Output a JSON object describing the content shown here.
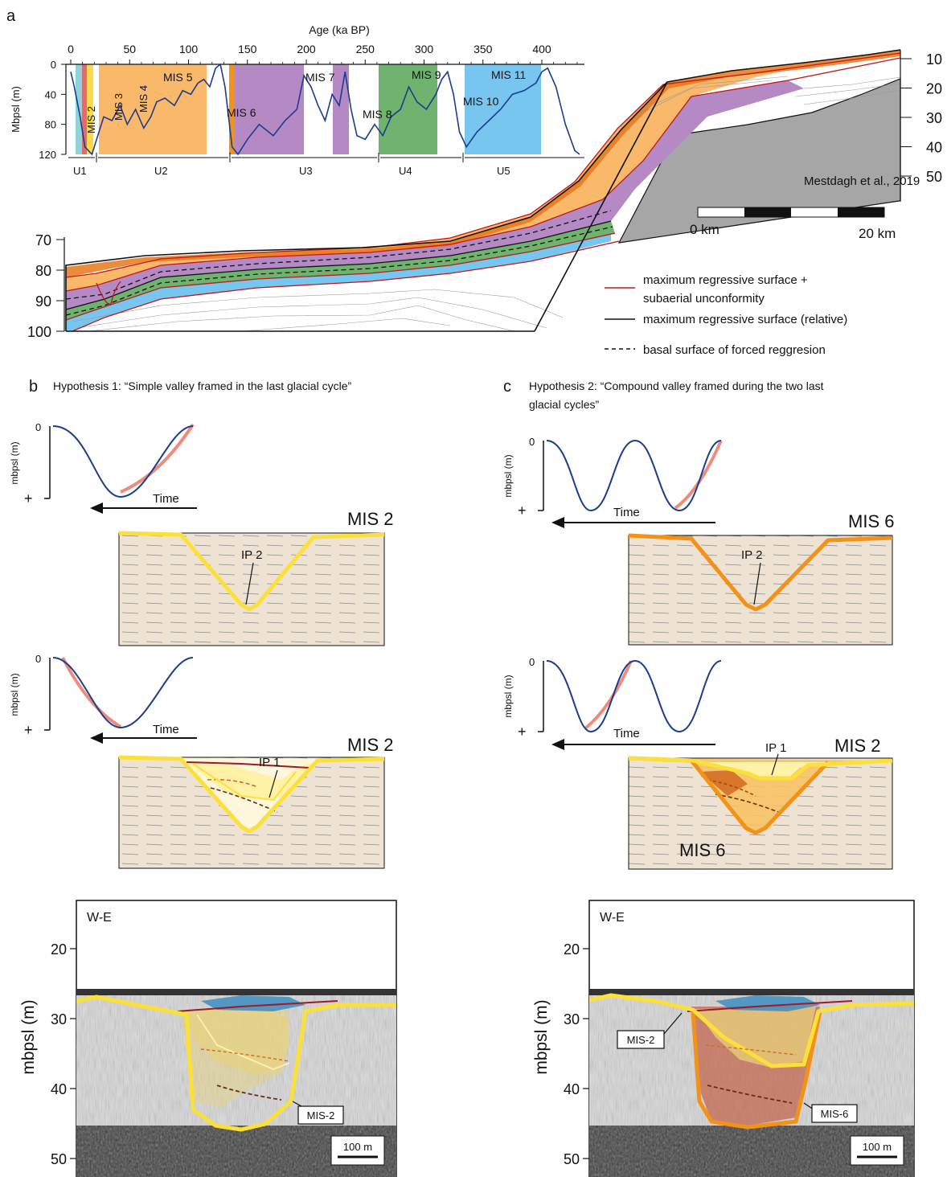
{
  "panel_a": {
    "letter": "a",
    "age_axis_title": "Age (ka BP)",
    "age_ticks": [
      "0",
      "50",
      "100",
      "150",
      "200",
      "250",
      "300",
      "350",
      "400"
    ],
    "depth_axis_title": "Mbpsl (m)",
    "depth_ticks": [
      "0",
      "40",
      "80",
      "120"
    ],
    "mis_labels": [
      "MIS 2",
      "MIS 3",
      "MIS 4",
      "MIS 5",
      "MIS 6",
      "MIS 7",
      "MIS 8",
      "MIS 9",
      "MIS 10",
      "MIS 11"
    ],
    "units": [
      "U1",
      "U2",
      "U3",
      "U4",
      "U5"
    ],
    "right_ticks": [
      "10",
      "20",
      "30",
      "40",
      "50"
    ],
    "left_ticks": [
      "70",
      "80",
      "90",
      "100"
    ],
    "citation": "Mestdagh et al., 2019",
    "scale_start": "0 km",
    "scale_end": "20 km",
    "legend": {
      "red_line_1": "maximum regressive surface +",
      "red_line_2": "subaerial unconformity",
      "black_line": "maximum regressive surface (relative)",
      "dashed_line": "basal surface of forced reggresion"
    },
    "colors": {
      "mis2": "#8fd3d8",
      "mis5": "#f9b86a",
      "mis6": "#f39219",
      "mis7": "#b58ac4",
      "mis9": "#6fb36f",
      "mis11": "#77c6f0",
      "basement": "#a6a6a6",
      "curve": "#1a3d8f"
    }
  },
  "panel_b": {
    "letter": "b",
    "title": "Hypothesis 1: “Simple valley framed in the last glacial cycle”",
    "y_label": "mbpsl (m)",
    "zero": "0",
    "plus": "+",
    "time": "Time",
    "upper_mis": "MIS 2",
    "upper_ip": "IP 2",
    "lower_mis": "MIS 2",
    "lower_ip": "IP 1",
    "seismic": {
      "orientation": "W-E",
      "y_label": "mbpsl (m)",
      "ticks": [
        "20",
        "30",
        "40",
        "50"
      ],
      "callout": "MIS-2",
      "scale": "100 m"
    }
  },
  "panel_c": {
    "letter": "c",
    "title_line1": "Hypothesis 2: “Compound valley framed during the two last",
    "title_line2": "glacial cycles”",
    "y_label": "mbpsl (m)",
    "zero": "0",
    "plus": "+",
    "time": "Time",
    "upper_mis": "MIS 6",
    "upper_ip": "IP 2",
    "lower_mis": "MIS 2",
    "lower_ip": "IP 1",
    "lower_mis_bottom": "MIS 6",
    "seismic": {
      "orientation": "W-E",
      "y_label": "mbpsl (m)",
      "ticks": [
        "20",
        "30",
        "40",
        "50"
      ],
      "callout_left": "MIS-2",
      "callout_right": "MIS-6",
      "scale": "100 m"
    }
  },
  "sea_level_curve": [
    [
      0,
      10
    ],
    [
      3,
      30
    ],
    [
      8,
      70
    ],
    [
      12,
      110
    ],
    [
      18,
      120
    ],
    [
      22,
      100
    ],
    [
      28,
      70
    ],
    [
      35,
      75
    ],
    [
      42,
      55
    ],
    [
      48,
      80
    ],
    [
      55,
      60
    ],
    [
      62,
      85
    ],
    [
      68,
      70
    ],
    [
      73,
      50
    ],
    [
      80,
      45
    ],
    [
      88,
      55
    ],
    [
      95,
      35
    ],
    [
      102,
      40
    ],
    [
      108,
      25
    ],
    [
      113,
      20
    ],
    [
      118,
      30
    ],
    [
      123,
      5
    ],
    [
      127,
      0
    ],
    [
      131,
      30
    ],
    [
      137,
      110
    ],
    [
      142,
      120
    ],
    [
      150,
      100
    ],
    [
      160,
      80
    ],
    [
      172,
      95
    ],
    [
      182,
      75
    ],
    [
      192,
      60
    ],
    [
      198,
      15
    ],
    [
      204,
      30
    ],
    [
      210,
      55
    ],
    [
      216,
      75
    ],
    [
      222,
      40
    ],
    [
      228,
      55
    ],
    [
      233,
      10
    ],
    [
      238,
      60
    ],
    [
      243,
      95
    ],
    [
      250,
      100
    ],
    [
      258,
      80
    ],
    [
      265,
      95
    ],
    [
      272,
      70
    ],
    [
      280,
      60
    ],
    [
      287,
      30
    ],
    [
      294,
      50
    ],
    [
      302,
      60
    ],
    [
      310,
      40
    ],
    [
      315,
      20
    ],
    [
      320,
      10
    ],
    [
      325,
      40
    ],
    [
      330,
      90
    ],
    [
      336,
      110
    ],
    [
      345,
      90
    ],
    [
      355,
      75
    ],
    [
      365,
      60
    ],
    [
      375,
      40
    ],
    [
      385,
      35
    ],
    [
      395,
      25
    ],
    [
      400,
      10
    ],
    [
      405,
      5
    ],
    [
      412,
      30
    ],
    [
      420,
      80
    ],
    [
      428,
      115
    ],
    [
      432,
      120
    ]
  ]
}
